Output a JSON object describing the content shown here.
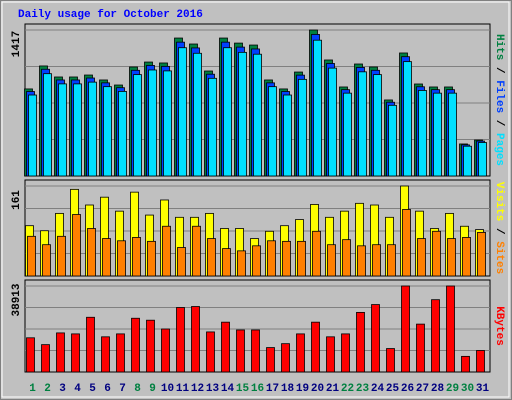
{
  "chart_data": [
    {
      "type": "bar",
      "title": "Daily usage for October 2016",
      "legend_separator": "/",
      "ylim": [
        0,
        1417
      ],
      "yticks": [
        1417
      ],
      "series": [
        {
          "name": "Hits",
          "color": "#008040",
          "values": [
            845,
            1068,
            961,
            961,
            980,
            932,
            883,
            1058,
            1106,
            1097,
            1339,
            1281,
            1019,
            1339,
            1290,
            1271,
            932,
            845,
            1009,
            1417,
            1126,
            864,
            1087,
            1058,
            738,
            1194,
            893,
            864,
            864,
            311,
            349
          ]
        },
        {
          "name": "Files",
          "color": "#0040ff",
          "values": [
            820,
            1036,
            932,
            932,
            951,
            904,
            857,
            1026,
            1073,
            1064,
            1299,
            1243,
            988,
            1299,
            1251,
            1233,
            904,
            820,
            979,
            1374,
            1092,
            838,
            1054,
            1026,
            716,
            1158,
            866,
            838,
            838,
            302,
            339
          ]
        },
        {
          "name": "Pages",
          "color": "#00e0ff",
          "values": [
            786,
            993,
            894,
            894,
            911,
            867,
            821,
            984,
            1029,
            1020,
            1245,
            1191,
            948,
            1245,
            1200,
            1182,
            867,
            786,
            938,
            1318,
            1047,
            804,
            1011,
            984,
            686,
            1110,
            830,
            804,
            804,
            289,
            325
          ]
        }
      ]
    },
    {
      "type": "bar",
      "ylim": [
        0,
        161
      ],
      "yticks": [
        161
      ],
      "series": [
        {
          "name": "Visits",
          "color": "#ffff00",
          "values": [
            90,
            81,
            112,
            155,
            127,
            141,
            116,
            150,
            109,
            136,
            105,
            105,
            112,
            85,
            85,
            67,
            80,
            90,
            101,
            128,
            105,
            116,
            130,
            127,
            105,
            161,
            116,
            85,
            112,
            89,
            83
          ]
        },
        {
          "name": "Sites",
          "color": "#ff8000",
          "values": [
            71,
            56,
            71,
            110,
            85,
            67,
            63,
            69,
            62,
            89,
            51,
            89,
            67,
            49,
            45,
            54,
            63,
            62,
            62,
            80,
            56,
            65,
            54,
            56,
            56,
            119,
            67,
            80,
            67,
            69,
            78
          ]
        }
      ]
    },
    {
      "type": "bar",
      "ylim": [
        0,
        38913
      ],
      "yticks": [
        38913
      ],
      "categories": [
        "1",
        "2",
        "3",
        "4",
        "5",
        "6",
        "7",
        "8",
        "9",
        "10",
        "11",
        "12",
        "13",
        "14",
        "15",
        "16",
        "17",
        "18",
        "19",
        "20",
        "21",
        "22",
        "23",
        "24",
        "25",
        "26",
        "27",
        "28",
        "29",
        "30",
        "31"
      ],
      "category_colors": [
        "#008040",
        "#008040",
        "#000080",
        "#000080",
        "#000080",
        "#000080",
        "#000080",
        "#008040",
        "#008040",
        "#000080",
        "#000080",
        "#000080",
        "#000080",
        "#000080",
        "#008040",
        "#008040",
        "#000080",
        "#000080",
        "#000080",
        "#000080",
        "#000080",
        "#008040",
        "#008040",
        "#000080",
        "#000080",
        "#000080",
        "#000080",
        "#000080",
        "#008040",
        "#008040",
        "#000080"
      ],
      "series": [
        {
          "name": "KBytes",
          "color": "#ff0000",
          "values": [
            15477,
            12381,
            17688,
            17245,
            24763,
            15919,
            17245,
            24321,
            23437,
            19457,
            29185,
            29627,
            18130,
            22552,
            19015,
            19015,
            11055,
            12823,
            17245,
            22552,
            15919,
            17245,
            26974,
            30511,
            10613,
            38913,
            21668,
            32722,
            38913,
            7075,
            9728
          ]
        }
      ]
    }
  ]
}
